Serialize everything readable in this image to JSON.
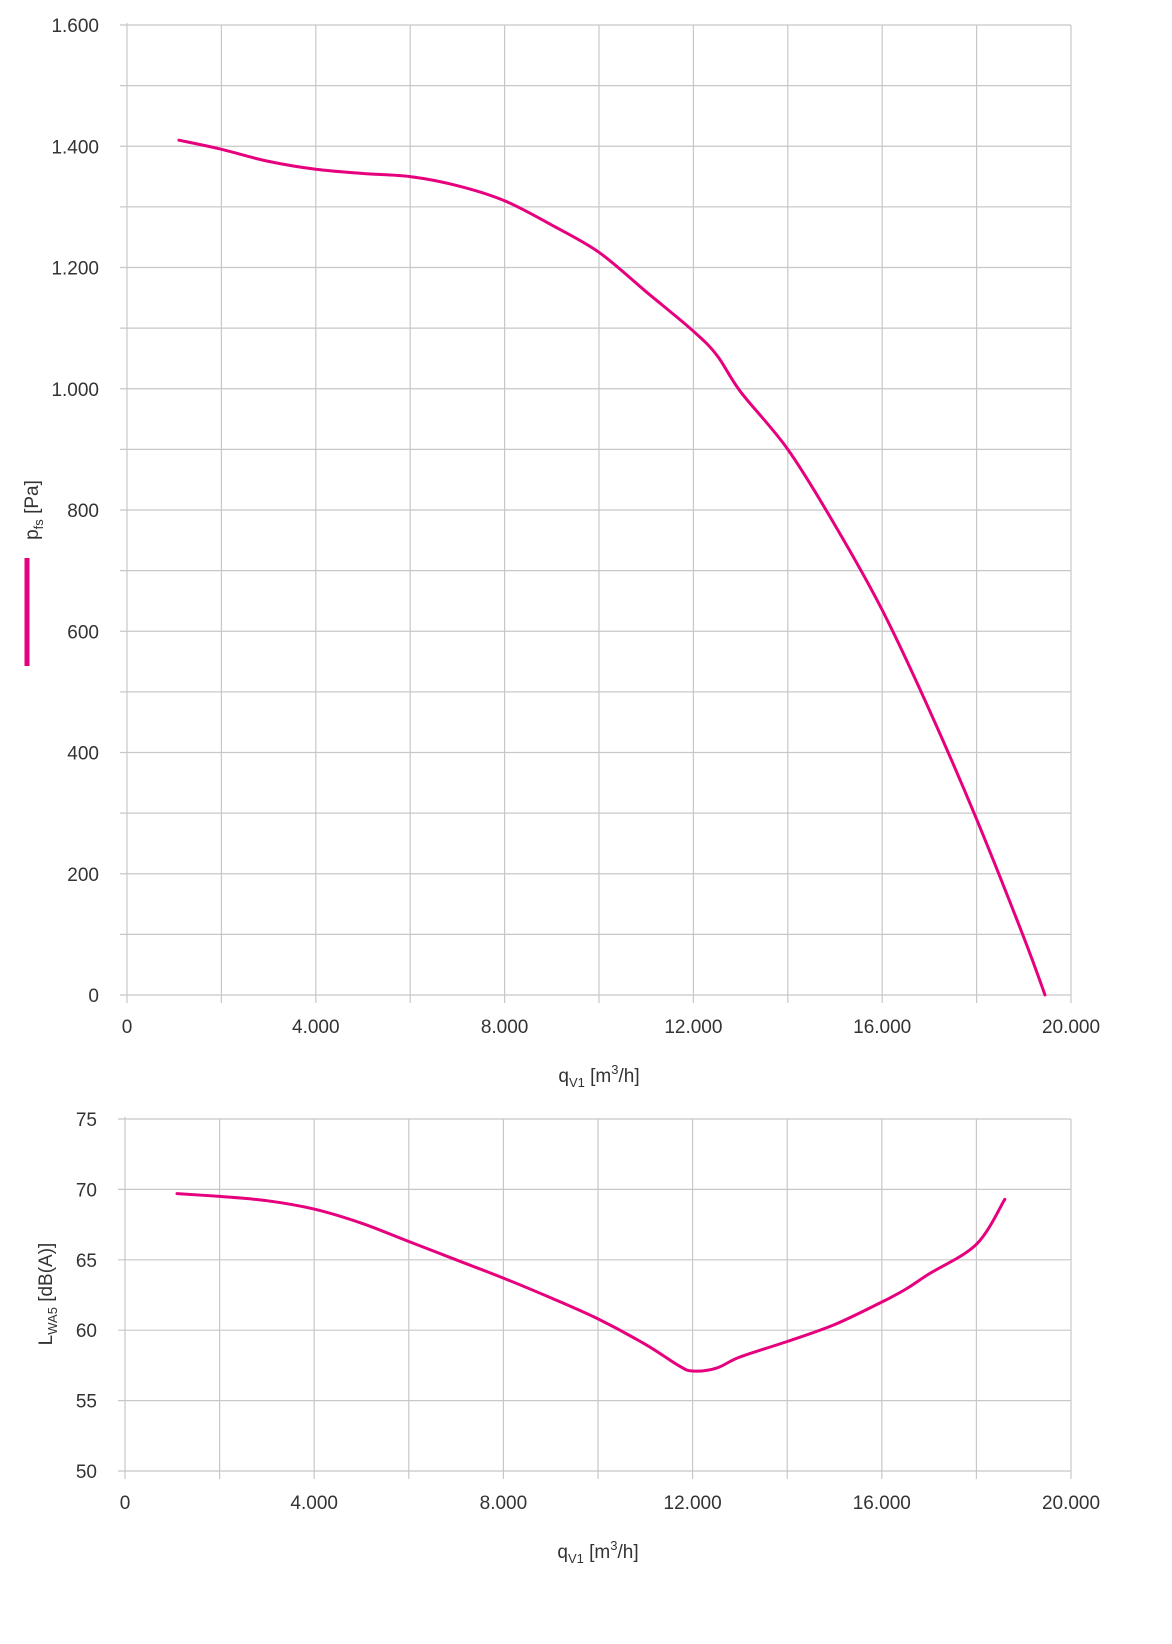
{
  "chart_data": [
    {
      "type": "line",
      "xlabel": {
        "base": "q",
        "sub": "V1",
        "unit_pre": " [m",
        "unit_sup": "3",
        "unit_post": "/h]"
      },
      "ylabel": {
        "base": "p",
        "sub": "fs",
        "unit": " [Pa]"
      },
      "xlim": [
        0,
        20000
      ],
      "ylim": [
        0,
        1600
      ],
      "x_ticks": [
        0,
        4000,
        8000,
        12000,
        16000,
        20000
      ],
      "x_tick_labels": [
        "0",
        "4.000",
        "8.000",
        "12.000",
        "16.000",
        "20.000"
      ],
      "y_ticks": [
        0,
        200,
        400,
        600,
        800,
        1000,
        1200,
        1400,
        1600
      ],
      "y_tick_labels": [
        "0",
        "200",
        "400",
        "600",
        "800",
        "1.000",
        "1.200",
        "1.400",
        "1.600"
      ],
      "grid": true,
      "legend": "vertical line swatch beside y-axis title",
      "color": "#e6007e",
      "series": [
        {
          "x": [
            1100,
            2000,
            3000,
            4000,
            5000,
            6000,
            7000,
            8000,
            9000,
            10000,
            11000,
            12000,
            12500,
            13000,
            14000,
            15000,
            16000,
            17000,
            18000,
            19000,
            19450
          ],
          "y": [
            1410,
            1395,
            1375,
            1362,
            1355,
            1350,
            1335,
            1310,
            1270,
            1225,
            1160,
            1095,
            1055,
            995,
            900,
            775,
            635,
            470,
            290,
            95,
            0
          ]
        }
      ]
    },
    {
      "type": "line",
      "xlabel": {
        "base": "q",
        "sub": "V1",
        "unit_pre": " [m",
        "unit_sup": "3",
        "unit_post": "/h]"
      },
      "ylabel": {
        "base": "L",
        "sub": "WA5",
        "unit": " [dB(A)]"
      },
      "xlim": [
        0,
        20000
      ],
      "ylim": [
        50,
        75
      ],
      "x_ticks": [
        0,
        4000,
        8000,
        12000,
        16000,
        20000
      ],
      "x_tick_labels": [
        "0",
        "4.000",
        "8.000",
        "12.000",
        "16.000",
        "20.000"
      ],
      "y_ticks": [
        50,
        55,
        60,
        65,
        70,
        75
      ],
      "y_tick_labels": [
        "50",
        "55",
        "60",
        "65",
        "70",
        "75"
      ],
      "grid": true,
      "color": "#e6007e",
      "series": [
        {
          "x": [
            1100,
            2000,
            3000,
            4000,
            5000,
            6000,
            7000,
            8000,
            9000,
            10000,
            11000,
            11700,
            12000,
            12500,
            13000,
            14000,
            15000,
            16000,
            16500,
            17000,
            18000,
            18600
          ],
          "y": [
            69.7,
            69.5,
            69.2,
            68.6,
            67.6,
            66.3,
            65.0,
            63.7,
            62.3,
            60.8,
            59.0,
            57.5,
            57.1,
            57.3,
            58.1,
            59.2,
            60.4,
            62.0,
            62.9,
            64.0,
            66.1,
            69.3
          ]
        }
      ]
    }
  ]
}
